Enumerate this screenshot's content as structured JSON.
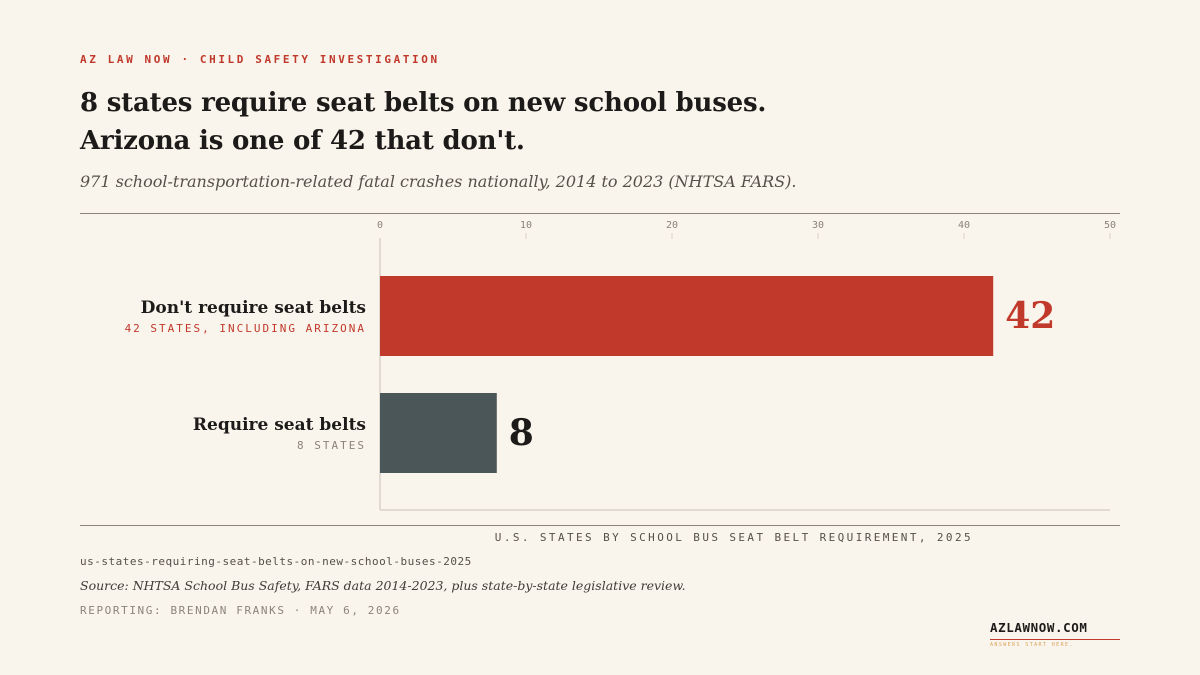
{
  "kicker": "AZ LAW NOW · CHILD SAFETY INVESTIGATION",
  "headline": {
    "line1": "8 states require seat belts on new school buses.",
    "line2": "Arizona is one of 42 that don't."
  },
  "subtitle": "971 school-transportation-related fatal crashes nationally, 2014 to 2023 (NHTSA FARS).",
  "chart_data": {
    "type": "bar",
    "orientation": "horizontal",
    "categories": [
      "Don't require seat belts",
      "Require seat belts"
    ],
    "category_notes": [
      "42 STATES, INCLUDING ARIZONA",
      "8 STATES"
    ],
    "values": [
      42,
      8
    ],
    "value_labels": [
      "42",
      "8"
    ],
    "xlim": [
      0,
      50
    ],
    "xticks": [
      0,
      10,
      20,
      30,
      40,
      50
    ],
    "xlabel": "U.S. STATES BY SCHOOL BUS SEAT BELT REQUIREMENT, 2025",
    "colors": [
      "#c0392b",
      "#4b5659"
    ],
    "label_colors": [
      "#c0392b",
      "#1d1b19"
    ],
    "note_colors": [
      "#c0392b",
      "#8a847c"
    ],
    "grid": false
  },
  "footer": {
    "slug": "us-states-requiring-seat-belts-on-new-school-buses-2025",
    "source": "Source: NHTSA School Bus Safety, FARS data 2014-2023, plus state-by-state legislative review.",
    "byline": "REPORTING: BRENDAN FRANKS · MAY 6, 2026"
  },
  "brand": {
    "name": "AZLAWNOW.COM",
    "tagline": "ANSWERS START HERE."
  }
}
